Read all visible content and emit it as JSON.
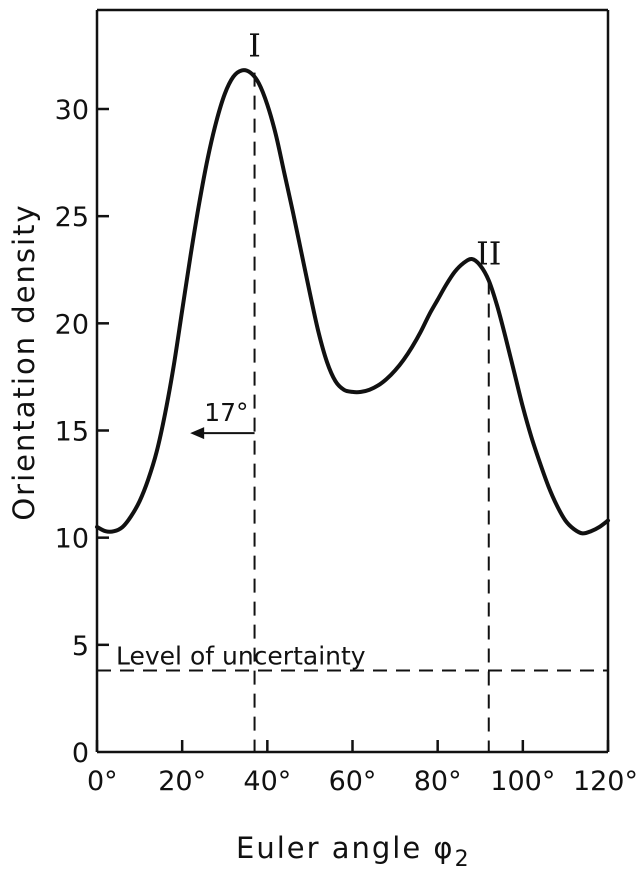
{
  "chart_data": {
    "type": "line",
    "xlabel": "Euler angle φ",
    "xlabel_subscript": "2",
    "ylabel": "Orientation density",
    "xlim": [
      0,
      120
    ],
    "ylim": [
      0,
      35
    ],
    "x_ticks": [
      0,
      20,
      40,
      60,
      80,
      100,
      120
    ],
    "x_tick_labels": [
      "0°",
      "20°",
      "40°",
      "60°",
      "80°",
      "100°",
      "120°"
    ],
    "y_ticks": [
      0,
      5,
      10,
      15,
      20,
      25,
      30
    ],
    "y_tick_labels": [
      "0",
      "5",
      "10",
      "15",
      "20",
      "25",
      "30"
    ],
    "grid": false,
    "series": [
      {
        "x": [
          0,
          2,
          4,
          6,
          8,
          10,
          12,
          14,
          16,
          18,
          20,
          22,
          24,
          26,
          28,
          30,
          32,
          34,
          36,
          38,
          40,
          42,
          44,
          46,
          48,
          50,
          52,
          54,
          56,
          58,
          60,
          62,
          64,
          66,
          68,
          70,
          72,
          74,
          76,
          78,
          80,
          82,
          84,
          86,
          88,
          90,
          92,
          94,
          96,
          98,
          100,
          102,
          104,
          106,
          108,
          110,
          112,
          114,
          116,
          118,
          120
        ],
        "y": [
          10.5,
          10.3,
          10.3,
          10.5,
          11.0,
          11.7,
          12.7,
          14.0,
          15.8,
          18.0,
          20.6,
          23.2,
          25.6,
          27.7,
          29.4,
          30.7,
          31.5,
          31.8,
          31.7,
          31.2,
          30.2,
          28.8,
          27.0,
          25.2,
          23.3,
          21.4,
          19.6,
          18.2,
          17.3,
          16.9,
          16.8,
          16.8,
          16.9,
          17.1,
          17.4,
          17.8,
          18.3,
          18.9,
          19.6,
          20.4,
          21.1,
          21.8,
          22.4,
          22.8,
          23.0,
          22.7,
          22.0,
          20.8,
          19.3,
          17.7,
          16.1,
          14.7,
          13.5,
          12.4,
          11.5,
          10.8,
          10.4,
          10.2,
          10.3,
          10.5,
          10.8
        ]
      }
    ],
    "peaks": [
      {
        "label": "I",
        "x": 37
      },
      {
        "label": "II",
        "x": 92
      }
    ],
    "uncertainty_level": {
      "y": 3.8,
      "label": "Level of uncertainty"
    },
    "width_annotation": {
      "label": "17°",
      "x_from": 37,
      "x_to": 20,
      "y": 16
    }
  }
}
